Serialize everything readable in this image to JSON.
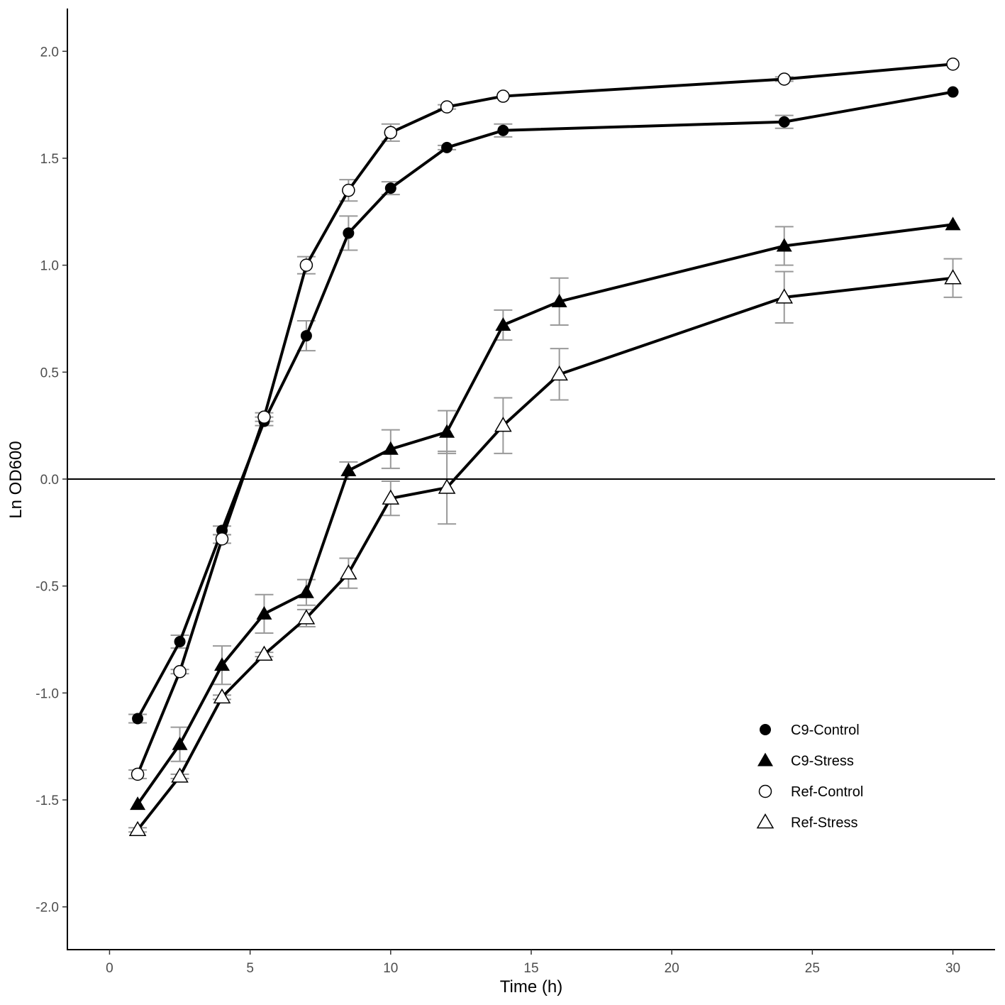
{
  "chart_data": {
    "type": "line",
    "xlabel": "Time (h)",
    "ylabel": "Ln OD600",
    "xlim": [
      -1.5,
      31.5
    ],
    "ylim": [
      -2.2,
      2.2
    ],
    "x_ticks": [
      0,
      5,
      10,
      15,
      20,
      25,
      30
    ],
    "x_tick_labels": [
      "0",
      "5",
      "10",
      "15",
      "20",
      "25",
      "30"
    ],
    "y_ticks": [
      -2.0,
      -1.5,
      -1.0,
      -0.5,
      0.0,
      0.5,
      1.0,
      1.5,
      2.0
    ],
    "y_tick_labels": [
      "-2.0",
      "-1.5",
      "-1.0",
      "-0.5",
      "0.0",
      "0.5",
      "1.0",
      "1.5",
      "2.0"
    ],
    "reference_line_y": 0,
    "grid": false,
    "legend_position": "bottom-right",
    "line_color": "#000000",
    "errorbar_color": "#999999",
    "series": [
      {
        "name": "C9-Control",
        "marker": "filled-circle",
        "x": [
          1,
          2.5,
          4,
          5.5,
          7,
          8.5,
          10,
          12,
          14,
          24,
          30
        ],
        "y": [
          -1.12,
          -0.76,
          -0.24,
          0.27,
          0.67,
          1.15,
          1.36,
          1.55,
          1.63,
          1.67,
          1.81
        ],
        "err": [
          0.02,
          0.03,
          0.02,
          0.02,
          0.07,
          0.08,
          0.03,
          0.01,
          0.03,
          0.03,
          0.0
        ]
      },
      {
        "name": "C9-Stress",
        "marker": "filled-triangle",
        "x": [
          1,
          2.5,
          4,
          5.5,
          7,
          8.5,
          10,
          12,
          14,
          16,
          24,
          30
        ],
        "y": [
          -1.52,
          -1.24,
          -0.87,
          -0.63,
          -0.53,
          0.04,
          0.14,
          0.22,
          0.72,
          0.83,
          1.09,
          1.19
        ],
        "err": [
          0.0,
          0.08,
          0.09,
          0.09,
          0.06,
          0.04,
          0.09,
          0.1,
          0.07,
          0.11,
          0.09,
          0.0
        ]
      },
      {
        "name": "Ref-Control",
        "marker": "open-circle",
        "x": [
          1,
          2.5,
          4,
          5.5,
          7,
          8.5,
          10,
          12,
          14,
          24,
          30
        ],
        "y": [
          -1.38,
          -0.9,
          -0.28,
          0.29,
          1.0,
          1.35,
          1.62,
          1.74,
          1.79,
          1.87,
          1.94
        ],
        "err": [
          0.02,
          0.01,
          0.02,
          0.02,
          0.04,
          0.05,
          0.04,
          0.01,
          0.0,
          0.01,
          0.0
        ]
      },
      {
        "name": "Ref-Stress",
        "marker": "open-triangle",
        "x": [
          1,
          2.5,
          4,
          5.5,
          7,
          8.5,
          10,
          12,
          14,
          16,
          24,
          30
        ],
        "y": [
          -1.64,
          -1.39,
          -1.02,
          -0.82,
          -0.65,
          -0.44,
          -0.09,
          -0.04,
          0.25,
          0.49,
          0.85,
          0.94
        ],
        "err": [
          0.01,
          0.01,
          0.01,
          0.01,
          0.04,
          0.07,
          0.08,
          0.17,
          0.13,
          0.12,
          0.12,
          0.09
        ]
      }
    ]
  }
}
